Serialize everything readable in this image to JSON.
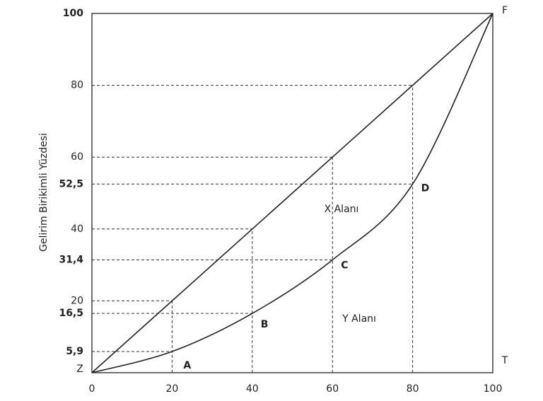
{
  "chart_data": {
    "type": "line",
    "y_label": "Gelirim Birikimli Yüzdesi",
    "x": [
      0,
      20,
      40,
      60,
      80,
      100
    ],
    "series": [
      {
        "color": "#222222",
        "values": [
          0,
          20,
          40,
          60,
          80,
          100
        ]
      },
      {
        "color": "#222222",
        "values": [
          0,
          5.9,
          16.5,
          31.4,
          52.5,
          100
        ],
        "point_labels": [
          null,
          "A",
          "B",
          "C",
          "D",
          null
        ]
      }
    ],
    "xlim": [
      0,
      100
    ],
    "ylim": [
      0,
      100
    ],
    "xticks": [
      0,
      20,
      40,
      60,
      80,
      100
    ],
    "yticks": [
      100,
      80,
      60,
      {
        "value": 52.5,
        "label": "52,5"
      },
      40,
      {
        "value": 31.4,
        "label": "31,4"
      },
      20,
      {
        "value": 16.5,
        "label": "16,5"
      },
      {
        "value": 5.9,
        "label": "5,9"
      }
    ],
    "corner_labels": {
      "origin": "Z",
      "top_right": "F",
      "bottom_right": "T"
    },
    "area_labels": [
      "X Alanı",
      "Y Alanı"
    ]
  }
}
